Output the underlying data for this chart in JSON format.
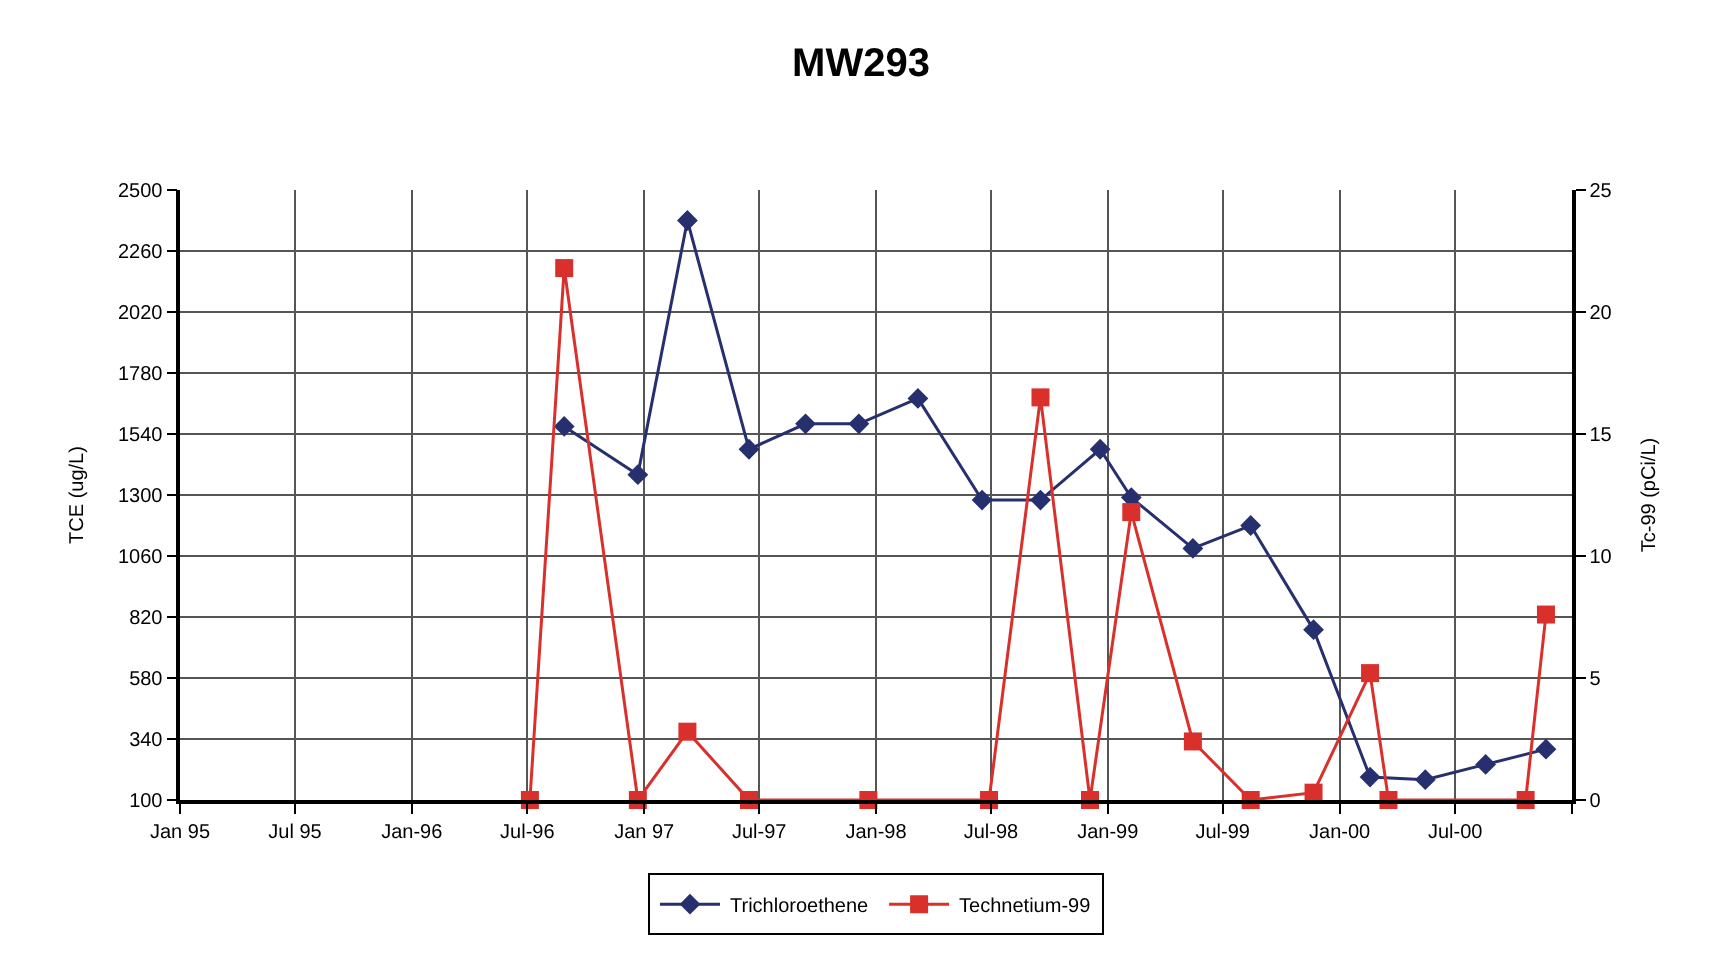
{
  "chart_data": {
    "type": "line",
    "title": "MW293",
    "ylabel": "TCE (ug/L)",
    "y2label": "Tc-99 (pCi/L)",
    "xlim": [
      "1995-01-01",
      "2001-01-01"
    ],
    "xticks": [
      {
        "value": "1995-01-01",
        "label": "Jan 95"
      },
      {
        "value": "1995-07-01",
        "label": "Jul 95"
      },
      {
        "value": "1996-01-01",
        "label": "Jan-96"
      },
      {
        "value": "1996-07-01",
        "label": "Jul-96"
      },
      {
        "value": "1997-01-01",
        "label": "Jan 97"
      },
      {
        "value": "1997-07-01",
        "label": "Jul-97"
      },
      {
        "value": "1998-01-01",
        "label": "Jan-98"
      },
      {
        "value": "1998-07-01",
        "label": "Jul-98"
      },
      {
        "value": "1999-01-01",
        "label": "Jan-99"
      },
      {
        "value": "1999-07-01",
        "label": "Jul-99"
      },
      {
        "value": "2000-01-01",
        "label": "Jan-00"
      },
      {
        "value": "2000-07-01",
        "label": "Jul-00"
      },
      {
        "value": "2001-01-01",
        "label": null
      }
    ],
    "ylim": [
      100,
      2500
    ],
    "yticks": [
      100,
      340,
      580,
      820,
      1060,
      1300,
      1540,
      1780,
      2020,
      2260,
      2500
    ],
    "y2lim": [
      0,
      25
    ],
    "y2ticks": [
      0,
      5,
      10,
      15,
      20,
      25
    ],
    "grid": true,
    "legend": "bottom",
    "series": [
      {
        "name": "Trichloroethene",
        "color": "#27306e",
        "marker": "diamond",
        "x": [
          "1996-08-28",
          "1996-12-22",
          "1997-03-10",
          "1997-06-15",
          "1997-09-12",
          "1997-12-05",
          "1998-03-08",
          "1998-06-17",
          "1998-09-17",
          "1998-12-20",
          "1999-02-07",
          "1999-05-15",
          "1999-08-14",
          "1999-11-21",
          "2000-02-18",
          "2000-05-15",
          "2000-08-18",
          "2000-11-21"
        ],
        "values": [
          1570,
          1380,
          2380,
          1480,
          1580,
          1580,
          1680,
          1280,
          1280,
          1480,
          1290,
          1090,
          1180,
          770,
          190,
          180,
          240,
          300
        ]
      },
      {
        "name": "Technetium-99",
        "color": "#d9302c",
        "marker": "square",
        "axis": "y2",
        "x": [
          "1996-07-05",
          "1996-08-28",
          "1996-12-22",
          "1997-03-10",
          "1997-06-15",
          "1997-12-20",
          "1998-06-28",
          "1998-09-17",
          "1998-12-04",
          "1999-02-07",
          "1999-05-15",
          "1999-08-14",
          "1999-11-21",
          "2000-02-18",
          "2000-03-18",
          "2000-10-20",
          "2000-11-21"
        ],
        "values": [
          0,
          21.8,
          0,
          2.8,
          0,
          0,
          0,
          16.5,
          0,
          11.8,
          2.4,
          0,
          0.3,
          5.2,
          0,
          0,
          7.6
        ]
      }
    ]
  }
}
